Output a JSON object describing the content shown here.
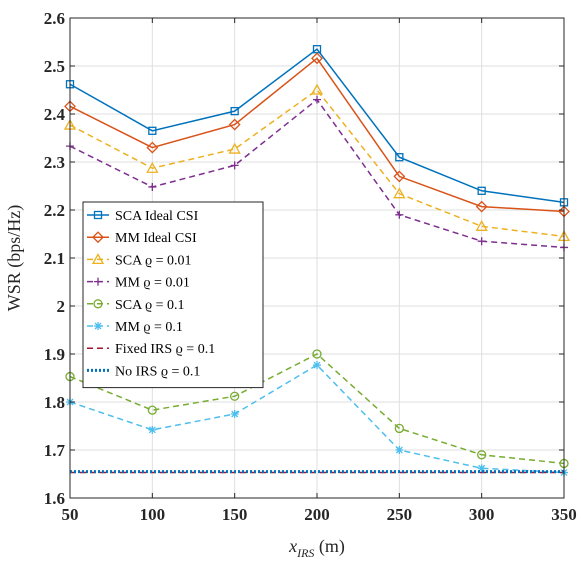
{
  "chart_data": {
    "type": "line",
    "title": "",
    "xlabel_main": "x",
    "xlabel_sub": "IRS",
    "xlabel_unit": " (m)",
    "ylabel": "WSR (bps/Hz)",
    "x": [
      50,
      100,
      150,
      200,
      250,
      300,
      350
    ],
    "xlim": [
      50,
      350
    ],
    "ylim": [
      1.6,
      2.6
    ],
    "xticks": [
      "50",
      "100",
      "150",
      "200",
      "250",
      "300",
      "350"
    ],
    "yticks": [
      "1.6",
      "1.7",
      "1.8",
      "1.9",
      "2",
      "2.1",
      "2.2",
      "2.3",
      "2.4",
      "2.5",
      "2.6"
    ],
    "grid": true,
    "legend_position": "center-left",
    "series": [
      {
        "name": "SCA Ideal CSI",
        "color": "#0072BD",
        "dash": "solid",
        "marker": "square",
        "values": [
          2.462,
          2.365,
          2.406,
          2.535,
          2.31,
          2.24,
          2.216
        ]
      },
      {
        "name": "MM Ideal CSI",
        "color": "#D95319",
        "dash": "solid",
        "marker": "diamond",
        "values": [
          2.416,
          2.33,
          2.378,
          2.516,
          2.27,
          2.207,
          2.197
        ]
      },
      {
        "name": "SCA ϱ = 0.01",
        "color": "#EDB120",
        "dash": "dashed",
        "marker": "triangle",
        "values": [
          2.377,
          2.287,
          2.327,
          2.45,
          2.234,
          2.166,
          2.145
        ]
      },
      {
        "name": "MM ϱ = 0.01",
        "color": "#7E2F8E",
        "dash": "dashed",
        "marker": "plus",
        "values": [
          2.333,
          2.248,
          2.293,
          2.43,
          2.19,
          2.135,
          2.122
        ]
      },
      {
        "name": "SCA ϱ = 0.1",
        "color": "#77AC30",
        "dash": "dashed",
        "marker": "circle",
        "values": [
          1.853,
          1.783,
          1.812,
          1.9,
          1.745,
          1.69,
          1.672
        ]
      },
      {
        "name": "MM ϱ = 0.1",
        "color": "#4DBEEE",
        "dash": "dashed",
        "marker": "asterisk",
        "values": [
          1.8,
          1.742,
          1.775,
          1.877,
          1.7,
          1.662,
          1.653
        ]
      },
      {
        "name": "Fixed IRS ϱ = 0.1",
        "color": "#A2142F",
        "dash": "dashed",
        "marker": "none",
        "values": [
          1.653,
          1.653,
          1.653,
          1.653,
          1.653,
          1.653,
          1.653
        ]
      },
      {
        "name": "No IRS ϱ = 0.1",
        "color": "#0072BD",
        "dash": "dotted",
        "marker": "none",
        "values": [
          1.655,
          1.655,
          1.655,
          1.655,
          1.655,
          1.655,
          1.655
        ]
      }
    ]
  }
}
